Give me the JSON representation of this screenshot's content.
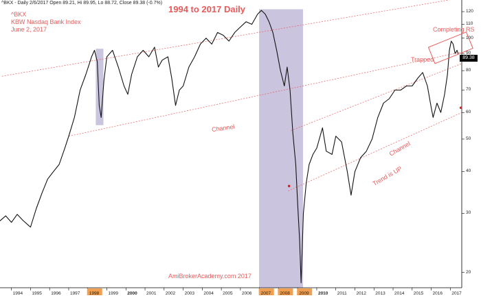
{
  "header_line": "^BKX - Daily 2/6/2017 Open 89.21, Hi 89.95, Lo 88.72, Close 89.38 (-0.7%)",
  "chart_data": {
    "type": "line",
    "title": "1994 to 2017 Daily",
    "symbol_lines": [
      "^BKX",
      "KBW Nasdaq Bank Index",
      "June 2, 2017"
    ],
    "xlabel": "",
    "ylabel": "",
    "yscale": "log",
    "ylim": [
      18,
      130
    ],
    "xlim": [
      1993.4,
      2017.6
    ],
    "yticks": [
      20,
      30,
      40,
      50,
      60,
      70,
      80,
      90,
      100,
      110,
      120
    ],
    "xticks": [
      {
        "label": "1994",
        "x": 1994
      },
      {
        "label": "1995",
        "x": 1995
      },
      {
        "label": "1996",
        "x": 1996
      },
      {
        "label": "1997",
        "x": 1997
      },
      {
        "label": "1998",
        "x": 1998
      },
      {
        "label": "1999",
        "x": 1999
      },
      {
        "label": "2000",
        "x": 2000
      },
      {
        "label": "2001",
        "x": 2001
      },
      {
        "label": "2002",
        "x": 2002
      },
      {
        "label": "2003",
        "x": 2003
      },
      {
        "label": "2004",
        "x": 2004
      },
      {
        "label": "2005",
        "x": 2005
      },
      {
        "label": "2006",
        "x": 2006
      },
      {
        "label": "2007",
        "x": 2007
      },
      {
        "label": "2008",
        "x": 2008
      },
      {
        "label": "2009",
        "x": 2009
      },
      {
        "label": "2010",
        "x": 2010
      },
      {
        "label": "2011",
        "x": 2011
      },
      {
        "label": "2012",
        "x": 2012
      },
      {
        "label": "2013",
        "x": 2013
      },
      {
        "label": "2014",
        "x": 2014
      },
      {
        "label": "2015",
        "x": 2015
      },
      {
        "label": "2016",
        "x": 2016
      },
      {
        "label": "2017",
        "x": 2017
      }
    ],
    "bold_years": [
      "2000",
      "2010"
    ],
    "highlighted_years": [
      "1998",
      "2007",
      "2008",
      "2009"
    ],
    "last_price": "89.38",
    "series": [
      {
        "values": [
          [
            1993.4,
            28.5
          ],
          [
            1993.7,
            29.5
          ],
          [
            1994.0,
            28.2
          ],
          [
            1994.3,
            29.8
          ],
          [
            1994.6,
            28.6
          ],
          [
            1994.9,
            27.6
          ],
          [
            1995.0,
            27.3
          ],
          [
            1995.3,
            31
          ],
          [
            1995.6,
            34.5
          ],
          [
            1995.9,
            38
          ],
          [
            1996.2,
            40
          ],
          [
            1996.5,
            42
          ],
          [
            1996.8,
            47
          ],
          [
            1997.0,
            51
          ],
          [
            1997.3,
            58
          ],
          [
            1997.6,
            70
          ],
          [
            1997.9,
            78
          ],
          [
            1998.2,
            88
          ],
          [
            1998.35,
            92
          ],
          [
            1998.5,
            85
          ],
          [
            1998.6,
            63
          ],
          [
            1998.7,
            58
          ],
          [
            1998.85,
            75
          ],
          [
            1999.0,
            88
          ],
          [
            1999.3,
            92
          ],
          [
            1999.6,
            82
          ],
          [
            1999.9,
            72
          ],
          [
            2000.1,
            68
          ],
          [
            2000.3,
            78
          ],
          [
            2000.6,
            88
          ],
          [
            2000.9,
            92
          ],
          [
            2001.2,
            88
          ],
          [
            2001.5,
            94
          ],
          [
            2001.7,
            82
          ],
          [
            2001.9,
            86
          ],
          [
            2002.2,
            88
          ],
          [
            2002.4,
            76
          ],
          [
            2002.6,
            63
          ],
          [
            2002.8,
            70
          ],
          [
            2003.0,
            72
          ],
          [
            2003.3,
            82
          ],
          [
            2003.6,
            88
          ],
          [
            2003.9,
            96
          ],
          [
            2004.2,
            100
          ],
          [
            2004.5,
            96
          ],
          [
            2004.8,
            104
          ],
          [
            2005.1,
            102
          ],
          [
            2005.4,
            98
          ],
          [
            2005.7,
            104
          ],
          [
            2006.0,
            108
          ],
          [
            2006.3,
            112
          ],
          [
            2006.6,
            110
          ],
          [
            2006.9,
            118
          ],
          [
            2007.1,
            121
          ],
          [
            2007.3,
            118
          ],
          [
            2007.5,
            112
          ],
          [
            2007.7,
            104
          ],
          [
            2007.9,
            92
          ],
          [
            2008.1,
            80
          ],
          [
            2008.3,
            72
          ],
          [
            2008.45,
            82
          ],
          [
            2008.6,
            70
          ],
          [
            2008.75,
            52
          ],
          [
            2008.9,
            42
          ],
          [
            2009.0,
            32
          ],
          [
            2009.1,
            25
          ],
          [
            2009.18,
            18.6
          ],
          [
            2009.3,
            30
          ],
          [
            2009.45,
            37
          ],
          [
            2009.6,
            42
          ],
          [
            2009.8,
            45
          ],
          [
            2010.0,
            47
          ],
          [
            2010.3,
            54
          ],
          [
            2010.5,
            46
          ],
          [
            2010.8,
            45
          ],
          [
            2011.0,
            51
          ],
          [
            2011.3,
            49
          ],
          [
            2011.6,
            40
          ],
          [
            2011.8,
            34
          ],
          [
            2012.0,
            40
          ],
          [
            2012.3,
            44
          ],
          [
            2012.6,
            46
          ],
          [
            2012.9,
            50
          ],
          [
            2013.2,
            58
          ],
          [
            2013.5,
            64
          ],
          [
            2013.8,
            66
          ],
          [
            2014.1,
            70
          ],
          [
            2014.4,
            70
          ],
          [
            2014.7,
            72
          ],
          [
            2015.0,
            72
          ],
          [
            2015.3,
            76
          ],
          [
            2015.55,
            79
          ],
          [
            2015.8,
            72
          ],
          [
            2016.0,
            62
          ],
          [
            2016.1,
            58
          ],
          [
            2016.3,
            64
          ],
          [
            2016.5,
            60
          ],
          [
            2016.7,
            68
          ],
          [
            2016.85,
            78
          ],
          [
            2016.95,
            92
          ],
          [
            2017.05,
            98
          ],
          [
            2017.15,
            96
          ],
          [
            2017.25,
            90
          ],
          [
            2017.35,
            92
          ],
          [
            2017.42,
            89.38
          ]
        ]
      }
    ],
    "shaded_regions": [
      [
        1998.42,
        1998.82
      ],
      [
        2006.98,
        2009.28
      ]
    ],
    "channels": [
      {
        "p1": [
          1993.5,
          77
        ],
        "p2": [
          2017.6,
          132
        ]
      },
      {
        "p1": [
          1997.0,
          51
        ],
        "p2": [
          2017.6,
          91
        ]
      },
      {
        "p1": [
          2008.65,
          53
        ],
        "p2": [
          2017.6,
          84
        ]
      },
      {
        "p1": [
          2008.5,
          35
        ],
        "p2": [
          2017.6,
          60
        ]
      }
    ],
    "markers": [
      [
        2008.55,
        36.2
      ],
      [
        2017.55,
        62
      ]
    ],
    "completing_box": {
      "x1": 2016.6,
      "x2": 2017.3,
      "ylow": 87,
      "yhigh": 100
    },
    "annotations": {
      "channel_upper": "Channel",
      "channel_lower": "Channel",
      "trend": "Trend is UP",
      "trapped": "Trapped",
      "completing": "Completing RS"
    },
    "watermark": "AmiBrokerAcademy.com  2017"
  }
}
